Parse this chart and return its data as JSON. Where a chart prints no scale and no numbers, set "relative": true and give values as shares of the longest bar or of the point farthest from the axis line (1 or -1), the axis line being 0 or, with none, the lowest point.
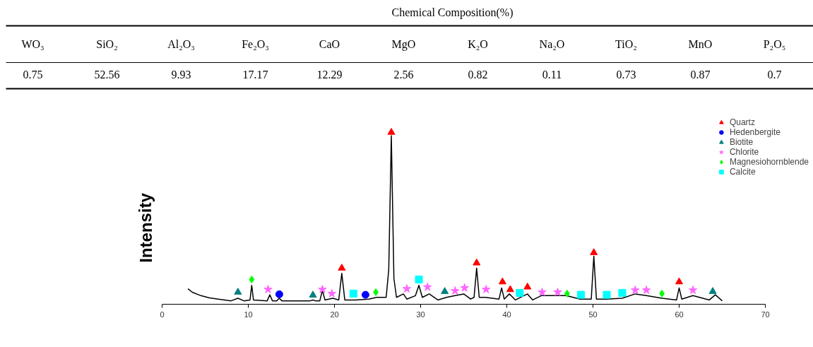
{
  "chart_data": [
    {
      "type": "other",
      "title": "Chemical Composition(%)",
      "categories": [
        "WO₃",
        "SiO₂",
        "Al₂O₃",
        "Fe₂O₃",
        "CaO",
        "MgO",
        "K₂O",
        "Na₂O",
        "TiO₂",
        "MnO",
        "P₂O₅"
      ],
      "values": [
        0.75,
        52.56,
        9.93,
        17.17,
        12.29,
        2.56,
        0.82,
        0.11,
        0.73,
        0.87,
        0.7
      ],
      "data_labels": true
    },
    {
      "type": "line",
      "relative": true,
      "ylabel": "Intensity",
      "xlim": [
        0,
        70
      ],
      "xticks": [
        0,
        10,
        20,
        30,
        40,
        50,
        60,
        70
      ],
      "legend": "top right",
      "grid": false,
      "series": [
        {
          "type": "line",
          "color": "#000000",
          "marker": "none",
          "x": [
            3.0,
            3.5,
            4.5,
            5.5,
            6.5,
            8.0,
            8.8,
            9.5,
            10.2,
            10.4,
            10.6,
            12.2,
            12.5,
            12.8,
            13.3,
            13.6,
            13.9,
            17.2,
            17.5,
            17.8,
            18.3,
            18.6,
            18.9,
            19.8,
            20.5,
            20.85,
            21.2,
            22.5,
            24.0,
            24.9,
            26.0,
            26.3,
            26.6,
            26.9,
            27.2,
            28.0,
            28.4,
            29.4,
            29.8,
            30.2,
            31.0,
            32.0,
            33.0,
            34.0,
            35.0,
            35.8,
            36.2,
            36.5,
            36.8,
            37.5,
            39.1,
            39.4,
            39.7,
            40.3,
            41.0,
            42.4,
            43.0,
            44.0,
            45.7,
            46.9,
            48.5,
            49.8,
            50.1,
            50.4,
            51.6,
            53.4,
            54.9,
            56.2,
            58.0,
            59.7,
            60.0,
            60.3,
            61.6,
            63.5,
            64.2,
            65.0
          ],
          "values": [
            0.09,
            0.07,
            0.05,
            0.037,
            0.03,
            0.02,
            0.035,
            0.02,
            0.025,
            0.11,
            0.025,
            0.02,
            0.055,
            0.02,
            0.02,
            0.035,
            0.02,
            0.02,
            0.025,
            0.02,
            0.02,
            0.08,
            0.025,
            0.035,
            0.025,
            0.18,
            0.025,
            0.025,
            0.03,
            0.04,
            0.04,
            0.2,
            0.98,
            0.15,
            0.04,
            0.06,
            0.03,
            0.05,
            0.11,
            0.04,
            0.06,
            0.025,
            0.04,
            0.05,
            0.06,
            0.03,
            0.04,
            0.21,
            0.04,
            0.04,
            0.03,
            0.095,
            0.03,
            0.06,
            0.025,
            0.06,
            0.025,
            0.05,
            0.05,
            0.05,
            0.03,
            0.03,
            0.28,
            0.03,
            0.03,
            0.035,
            0.06,
            0.05,
            0.035,
            0.025,
            0.095,
            0.03,
            0.05,
            0.025,
            0.055,
            0.02
          ]
        },
        {
          "type": "scatter",
          "name": "Quartz",
          "color": "#ff0000",
          "marker": "triangle",
          "x": [
            20.85,
            26.6,
            36.5,
            39.5,
            40.4,
            42.4,
            50.1,
            60.0
          ],
          "values": [
            0.21,
            1,
            0.24,
            0.13,
            0.085,
            0.1,
            0.3,
            0.13
          ]
        },
        {
          "type": "scatter",
          "name": "Hedenbergite",
          "color": "#0000ff",
          "marker": "circle",
          "x": [
            13.6,
            23.6
          ],
          "values": [
            0.058,
            0.055
          ]
        },
        {
          "type": "scatter",
          "name": "Biotite",
          "color": "#008080",
          "marker": "triangle",
          "x": [
            8.8,
            17.5,
            32.8,
            63.9
          ],
          "values": [
            0.07,
            0.053,
            0.074,
            0.074
          ]
        },
        {
          "type": "scatter",
          "name": "Chlorite",
          "color": "#ff66ff",
          "marker": "star",
          "x": [
            12.3,
            18.6,
            19.7,
            28.4,
            30.8,
            34.0,
            35.1,
            37.6,
            44.1,
            45.9,
            54.9,
            56.2,
            61.6
          ],
          "values": [
            0.086,
            0.086,
            0.062,
            0.09,
            0.1,
            0.078,
            0.095,
            0.086,
            0.07,
            0.07,
            0.082,
            0.082,
            0.082
          ]
        },
        {
          "type": "scatter",
          "name": "Magnesiohornblende",
          "color": "#00ff00",
          "marker": "diamond",
          "x": [
            10.4,
            24.8,
            47.0,
            58.0
          ],
          "values": [
            0.144,
            0.07,
            0.062,
            0.062
          ]
        },
        {
          "type": "scatter",
          "name": "Calcite",
          "color": "#00ffff",
          "marker": "square",
          "x": [
            22.2,
            29.8,
            41.5,
            48.6,
            51.6,
            53.4
          ],
          "values": [
            0.062,
            0.144,
            0.066,
            0.055,
            0.055,
            0.066
          ]
        }
      ]
    }
  ]
}
